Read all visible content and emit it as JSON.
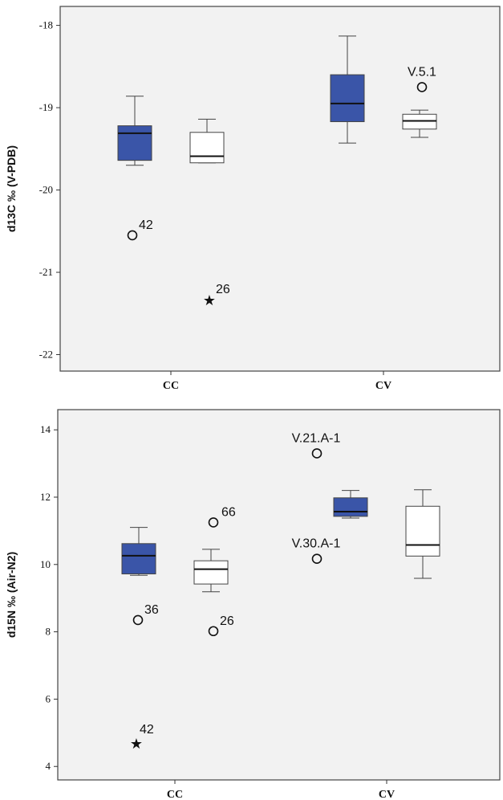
{
  "colors": {
    "filled": "#3a55a8",
    "empty": "#ffffff",
    "background": "#f2f2f2"
  },
  "chart_data": [
    {
      "type": "box",
      "ylabel": "d13C ‰ (V-PDB)",
      "ylim": [
        -22.2,
        -17.77
      ],
      "yticks": [
        -22,
        -21,
        -20,
        -19,
        -18
      ],
      "categories": [
        "CC",
        "CV"
      ],
      "series": [
        {
          "style": "filled",
          "boxes": [
            {
              "category": "CC",
              "min": -19.7,
              "q1": -19.64,
              "median": -19.31,
              "q3": -19.22,
              "max": -18.86,
              "outliers": [
                {
                  "value": -20.55,
                  "label": "42",
                  "marker": "circle"
                }
              ]
            },
            {
              "category": "CV",
              "min": -19.43,
              "q1": -19.17,
              "median": -18.95,
              "q3": -18.6,
              "max": -18.13,
              "outliers": []
            }
          ]
        },
        {
          "style": "empty",
          "boxes": [
            {
              "category": "CC",
              "min": -19.67,
              "q1": -19.67,
              "median": -19.59,
              "q3": -19.3,
              "max": -19.14,
              "outliers": [
                {
                  "value": -21.33,
                  "label": "26",
                  "marker": "star"
                }
              ]
            },
            {
              "category": "CV",
              "min": -19.36,
              "q1": -19.26,
              "median": -19.16,
              "q3": -19.08,
              "max": -19.03,
              "outliers": [
                {
                  "value": -18.75,
                  "label": "V.5.1",
                  "marker": "circle"
                }
              ]
            }
          ]
        }
      ]
    },
    {
      "type": "box",
      "ylabel": "d15N ‰ (Air-N2)",
      "ylim": [
        3.6,
        14.6
      ],
      "yticks": [
        4,
        6,
        8,
        10,
        12,
        14
      ],
      "categories": [
        "CC",
        "CV"
      ],
      "series": [
        {
          "style": "filled",
          "boxes": [
            {
              "category": "CC",
              "min": 9.68,
              "q1": 9.72,
              "median": 10.26,
              "q3": 10.62,
              "max": 11.1,
              "outliers": [
                {
                  "value": 8.35,
                  "label": "36",
                  "marker": "circle"
                },
                {
                  "value": 4.7,
                  "label": "42",
                  "marker": "star"
                }
              ]
            },
            {
              "category": "CV",
              "min": 11.38,
              "q1": 11.43,
              "median": 11.57,
              "q3": 11.98,
              "max": 12.2,
              "outliers": [
                {
                  "value": 13.3,
                  "label": "V.21.A-1",
                  "marker": "circle"
                },
                {
                  "value": 10.17,
                  "label": "V.30.A-1",
                  "marker": "circle"
                }
              ]
            }
          ]
        },
        {
          "style": "empty",
          "boxes": [
            {
              "category": "CC",
              "min": 9.19,
              "q1": 9.42,
              "median": 9.86,
              "q3": 10.11,
              "max": 10.45,
              "outliers": [
                {
                  "value": 11.25,
                  "label": "66",
                  "marker": "circle"
                },
                {
                  "value": 8.02,
                  "label": "26",
                  "marker": "circle"
                }
              ]
            },
            {
              "category": "CV",
              "min": 9.59,
              "q1": 10.25,
              "median": 10.58,
              "q3": 11.73,
              "max": 12.22,
              "outliers": []
            }
          ]
        }
      ]
    }
  ]
}
